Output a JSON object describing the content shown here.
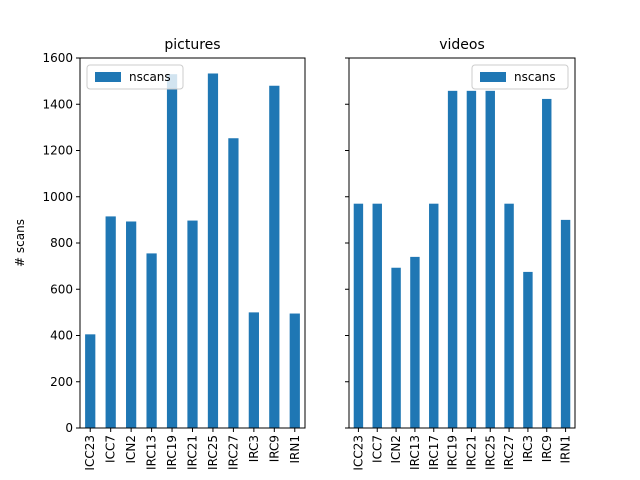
{
  "chart_data": [
    {
      "type": "bar",
      "title": "pictures",
      "ylabel": "# scans",
      "xlabel": "",
      "ylim": [
        0,
        1600
      ],
      "yticks": [
        0,
        200,
        400,
        600,
        800,
        1000,
        1200,
        1400,
        1600
      ],
      "categories": [
        "ICC23",
        "ICC7",
        "ICN2",
        "IRC13",
        "IRC19",
        "IRC21",
        "IRC25",
        "IRC27",
        "IRC3",
        "IRC9",
        "IRN1"
      ],
      "series": [
        {
          "name": "nscans",
          "values": [
            405,
            915,
            893,
            755,
            1530,
            897,
            1533,
            1253,
            500,
            1480,
            495
          ]
        }
      ],
      "legend": {
        "position": "upper-left"
      },
      "grid": false
    },
    {
      "type": "bar",
      "title": "videos",
      "ylabel": "",
      "xlabel": "",
      "ylim": [
        0,
        1600
      ],
      "categories": [
        "ICC23",
        "ICC7",
        "ICN2",
        "IRC13",
        "IRC17",
        "IRC19",
        "IRC21",
        "IRC25",
        "IRC27",
        "IRC3",
        "IRC9",
        "IRN1"
      ],
      "series": [
        {
          "name": "nscans",
          "values": [
            970,
            970,
            693,
            740,
            970,
            1458,
            1458,
            1458,
            970,
            675,
            1423,
            900
          ]
        }
      ],
      "legend": {
        "position": "upper-right"
      },
      "grid": false,
      "shared_y": true
    }
  ],
  "colors": {
    "bar": "#1f77b4",
    "axis": "#000000",
    "legend_border": "#cccccc"
  }
}
